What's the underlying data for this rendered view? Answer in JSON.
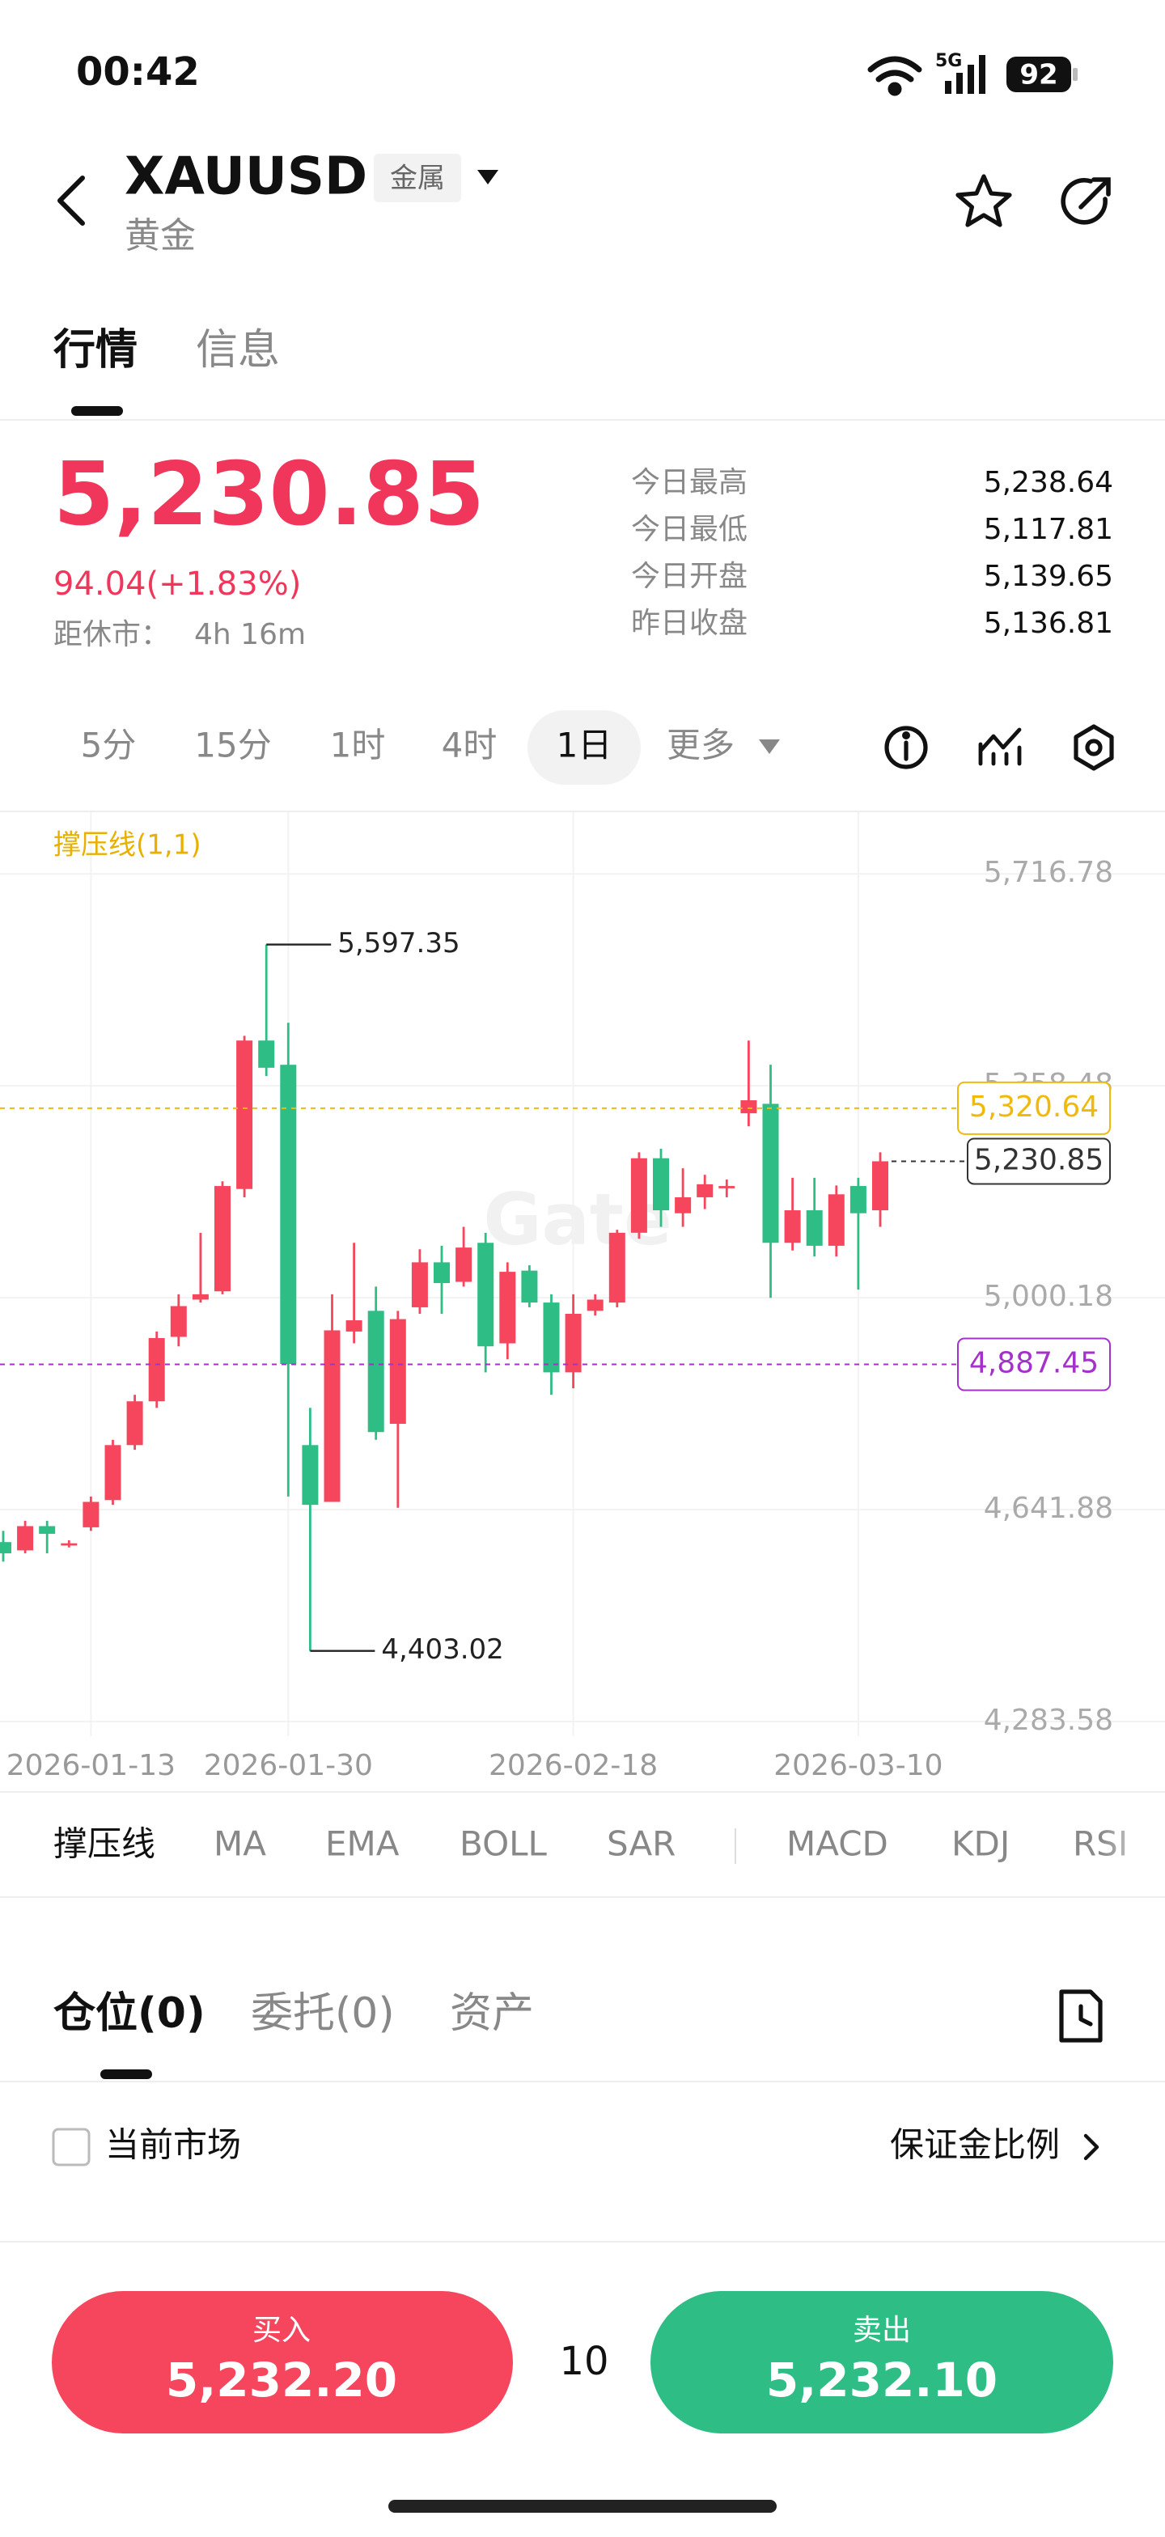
{
  "status_bar": {
    "time": "00:42",
    "network": "5G",
    "battery": "92"
  },
  "header": {
    "symbol": "XAUUSD",
    "tag": "金属",
    "name": "黄金"
  },
  "tabs": [
    "行情",
    "信息"
  ],
  "quote": {
    "price": "5,230.85",
    "change": "94.04(+1.83%)",
    "close_label": "距休市：",
    "close_time": "4h 16m",
    "stats": [
      {
        "label": "今日最高",
        "value": "5,238.64"
      },
      {
        "label": "今日最低",
        "value": "5,117.81"
      },
      {
        "label": "今日开盘",
        "value": "5,139.65"
      },
      {
        "label": "昨日收盘",
        "value": "5,136.81"
      }
    ]
  },
  "timeframes": [
    "5分",
    "15分",
    "1时",
    "4时",
    "1日"
  ],
  "more": "更多",
  "chart_data": {
    "type": "candlestick",
    "legend": "撑压线(1,1)",
    "watermark": "Gate",
    "up_color": "#f6465d",
    "down_color": "#2ebd85",
    "grid": true,
    "categories": [
      null,
      null,
      null,
      null,
      "2026-01-13",
      null,
      null,
      null,
      null,
      null,
      null,
      null,
      null,
      "2026-01-30",
      null,
      null,
      null,
      null,
      null,
      null,
      null,
      null,
      null,
      null,
      null,
      null,
      "2026-02-18",
      null,
      null,
      null,
      null,
      null,
      null,
      null,
      null,
      null,
      null,
      null,
      null,
      "2026-03-10",
      null
    ],
    "open": [
      4587,
      4573,
      4614,
      4582,
      4612,
      4658,
      4751,
      4825,
      4934,
      4997,
      5011,
      5184,
      5435,
      5394,
      4751,
      4655,
      4943,
      4978,
      4787,
      4984,
      5060,
      5027,
      5093,
      4923,
      5046,
      4992,
      4874,
      4978,
      4992,
      5110,
      5236,
      5143,
      5170,
      5186,
      5312,
      5328,
      5093,
      5148,
      5088,
      5189,
      5148
    ],
    "high": [
      4606,
      4623,
      4623,
      4590,
      4664,
      4760,
      4836,
      4943,
      5006,
      5110,
      5197,
      5443,
      5597.35,
      5465,
      4814,
      5006,
      5093,
      5019,
      4978,
      5082,
      5088,
      5120,
      5110,
      5060,
      5055,
      5006,
      5006,
      5006,
      5115,
      5246,
      5252,
      5219,
      5208,
      5200,
      5435,
      5394,
      5203,
      5203,
      5190,
      5203,
      5246
    ],
    "low": [
      4554,
      4568,
      4568,
      4578,
      4606,
      4650,
      4743,
      4814,
      4918,
      4992,
      5006,
      5170,
      5375,
      4664,
      4403.02,
      4655,
      4923,
      4760,
      4645,
      4973,
      4973,
      5019,
      4874,
      4896,
      4984,
      4836,
      4847,
      4970,
      4984,
      5100,
      5120,
      5120,
      5150,
      5170,
      5290,
      5000,
      5080,
      5070,
      5070,
      5014,
      5120
    ],
    "close": [
      4568,
      4614,
      4601,
      4585,
      4655,
      4751,
      4825,
      4932,
      4986,
      5006,
      5189,
      5435,
      5389,
      4888,
      4650,
      4945,
      4962,
      4773,
      4964,
      5060,
      5025,
      5085,
      4918,
      5044,
      4992,
      4874,
      4973,
      4997,
      5110,
      5236,
      5148,
      5170,
      5192,
      5189,
      5334,
      5093,
      5148,
      5088,
      5175,
      5143,
      5230.85
    ],
    "ylim": [
      4259,
      5821
    ],
    "yticks": [
      {
        "value": 5716.78,
        "label": "5,716.78"
      },
      {
        "value": 5358.48,
        "label": "5,358.48"
      },
      {
        "value": 5000.18,
        "label": "5,000.18"
      },
      {
        "value": 4641.88,
        "label": "4,641.88"
      },
      {
        "value": 4283.58,
        "label": "4,283.58"
      }
    ],
    "max_label": {
      "value": 5597.35,
      "label": "5,597.35"
    },
    "min_label": {
      "value": 4403.02,
      "label": "4,403.02"
    },
    "levels": [
      {
        "value": 5320.64,
        "label": "5,320.64",
        "color": "#f0b90b"
      },
      {
        "value": 4887.45,
        "label": "4,887.45",
        "color": "#a431c9"
      }
    ],
    "last_price": {
      "value": 5230.85,
      "label": "5,230.85",
      "color": "#333333"
    }
  },
  "indicators": [
    "撑压线",
    "MA",
    "EMA",
    "BOLL",
    "SAR",
    "MACD",
    "KDJ",
    "RSI"
  ],
  "position_tabs": [
    "仓位(0)",
    "委托(0)",
    "资产"
  ],
  "filter": {
    "label": "当前市场",
    "link": "保证金比例"
  },
  "trade": {
    "buy_label": "买入",
    "buy_price": "5,232.20",
    "quantity": "10",
    "sell_label": "卖出",
    "sell_price": "5,232.10"
  }
}
